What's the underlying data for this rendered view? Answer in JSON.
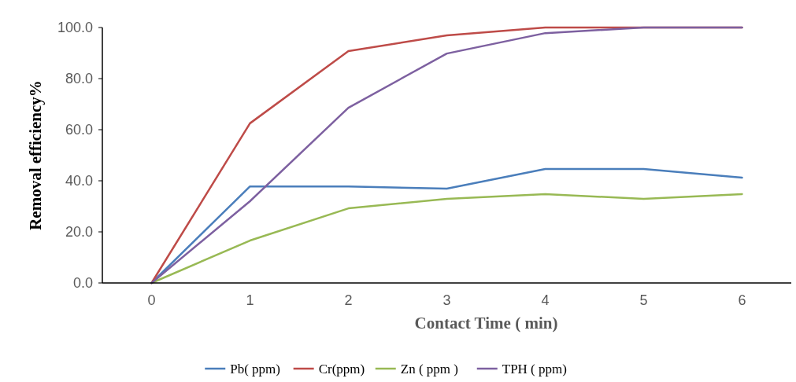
{
  "chart_data": {
    "type": "line",
    "xlabel": "Contact Time ( min)",
    "ylabel": "Removal efficiency%",
    "categories": [
      "0",
      "1",
      "2",
      "3",
      "4",
      "5",
      "6"
    ],
    "ylim": [
      0,
      100
    ],
    "yticks": [
      {
        "value": 0,
        "label": "0.0"
      },
      {
        "value": 20,
        "label": "20.0"
      },
      {
        "value": 40,
        "label": "40.0"
      },
      {
        "value": 60,
        "label": "60.0"
      },
      {
        "value": 80,
        "label": "80.0"
      },
      {
        "value": 100,
        "label": "100.0"
      }
    ],
    "grid": false,
    "legend": "bottom",
    "marker": "none",
    "line_style": "solid",
    "series": [
      {
        "name": "Pb( ppm)",
        "color": "#4a7ebb",
        "values": [
          0,
          37.8,
          37.8,
          36.9,
          44.6,
          44.6,
          41.2
        ]
      },
      {
        "name": "Cr(ppm)",
        "color": "#be4b48",
        "values": [
          0,
          62.5,
          90.8,
          96.9,
          100,
          100,
          100
        ]
      },
      {
        "name": "Zn ( ppm )",
        "color": "#98b954",
        "values": [
          0,
          16.6,
          29.2,
          32.9,
          34.8,
          32.9,
          34.8
        ]
      },
      {
        "name": "TPH ( ppm)",
        "color": "#7d60a0",
        "values": [
          0,
          32,
          68.6,
          89.8,
          97.8,
          100,
          100
        ]
      }
    ]
  }
}
